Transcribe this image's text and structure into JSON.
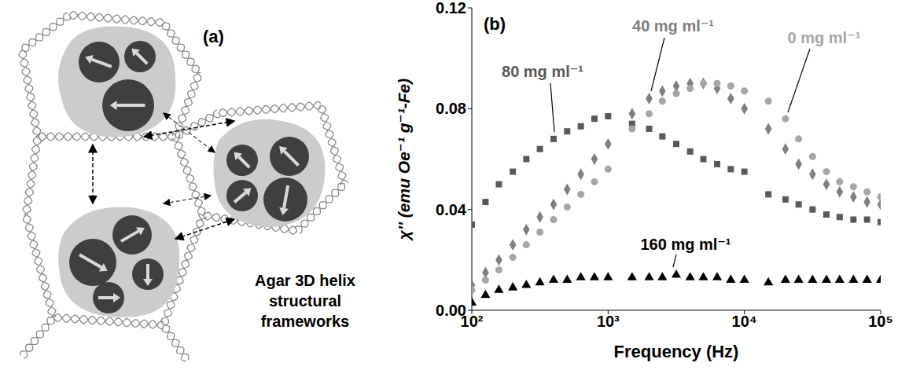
{
  "diagram": {
    "panel_label": "(a)",
    "caption": "Agar 3D helix structural frameworks"
  },
  "chart_data": {
    "type": "scatter",
    "panel_label": "(b)",
    "x_label": "Frequency (Hz)",
    "y_label": "χ'' (emu Oe⁻¹ g⁻¹-Fe)",
    "log": "x",
    "grid": false,
    "xlim": [
      100,
      100000
    ],
    "xticks": [
      {
        "value": 100,
        "label": "10²"
      },
      {
        "value": 1000,
        "label": "10³"
      },
      {
        "value": 10000,
        "label": "10⁴"
      },
      {
        "value": 100000,
        "label": "10⁵"
      }
    ],
    "ylim": [
      0,
      0.12
    ],
    "yticks": [
      {
        "value": 0,
        "label": "0.00"
      },
      {
        "value": 0.04,
        "label": "0.04"
      },
      {
        "value": 0.08,
        "label": "0.08"
      },
      {
        "value": 0.12,
        "label": "0.12"
      }
    ],
    "x": [
      100,
      126,
      158,
      200,
      251,
      316,
      398,
      501,
      631,
      794,
      1000,
      1500,
      2000,
      2500,
      3162,
      4000,
      5000,
      6310,
      7943,
      10000,
      15000,
      20000,
      25000,
      31620,
      40000,
      50000,
      63100,
      79430,
      100000
    ],
    "series": [
      {
        "name": "80 mg ml⁻¹",
        "color": "#595959",
        "marker": "square",
        "values": [
          0.034,
          0.043,
          0.05,
          0.055,
          0.06,
          0.064,
          0.068,
          0.071,
          0.073,
          0.076,
          0.077,
          0.074,
          0.072,
          0.069,
          0.066,
          0.063,
          0.06,
          0.058,
          0.056,
          0.055,
          0.046,
          0.044,
          0.042,
          0.04,
          0.038,
          0.037,
          0.036,
          0.036,
          0.035
        ]
      },
      {
        "name": "40 mg ml⁻¹",
        "color": "#7f7f7f",
        "marker": "diamond",
        "values": [
          0.01,
          0.015,
          0.02,
          0.026,
          0.032,
          0.037,
          0.042,
          0.048,
          0.054,
          0.06,
          0.066,
          0.078,
          0.084,
          0.087,
          0.089,
          0.09,
          0.09,
          0.088,
          0.084,
          0.08,
          0.072,
          0.064,
          0.058,
          0.054,
          0.05,
          0.047,
          0.045,
          0.043,
          0.042
        ]
      },
      {
        "name": "0 mg ml⁻¹",
        "color": "#a6a6a6",
        "marker": "circle",
        "values": [
          0.008,
          0.012,
          0.016,
          0.021,
          0.026,
          0.031,
          0.036,
          0.041,
          0.046,
          0.051,
          0.056,
          0.072,
          0.078,
          0.083,
          0.086,
          0.088,
          0.09,
          0.09,
          0.089,
          0.087,
          0.083,
          0.076,
          0.068,
          0.061,
          0.055,
          0.051,
          0.049,
          0.047,
          0.045
        ]
      },
      {
        "name": "160 mg ml⁻¹",
        "color": "#000000",
        "marker": "triangle",
        "values": [
          0.003,
          0.006,
          0.008,
          0.009,
          0.01,
          0.011,
          0.012,
          0.012,
          0.013,
          0.013,
          0.013,
          0.013,
          0.013,
          0.013,
          0.014,
          0.013,
          0.013,
          0.013,
          0.012,
          0.012,
          0.011,
          0.012,
          0.012,
          0.012,
          0.012,
          0.012,
          0.012,
          0.012,
          0.012
        ]
      }
    ]
  }
}
